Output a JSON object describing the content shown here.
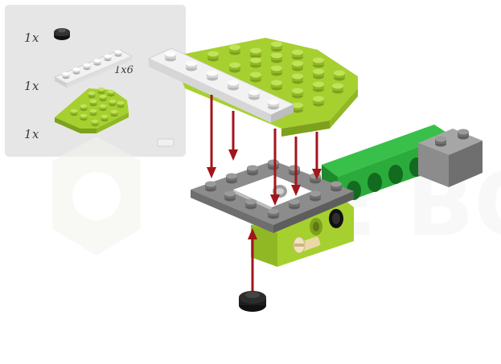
{
  "parts_list": {
    "items": [
      {
        "quantity": "1x",
        "part": "round-black-plate-icon"
      },
      {
        "quantity": "1x",
        "part": "white-plate-1x6-icon",
        "size_label": "1x6"
      },
      {
        "quantity": "1x",
        "part": "lime-wedge-plate-icon"
      }
    ]
  },
  "colors": {
    "panel": "#e6e6e6",
    "lime": "#a6d02f",
    "lime_dark": "#7ea11d",
    "grey_brick": "#8c8c8c",
    "white_plate": "#f2f2f2",
    "green_beam": "#2bab3c",
    "arrow": "#a1161b",
    "black": "#1d1d1d",
    "tan_pin": "#ead9a6"
  }
}
